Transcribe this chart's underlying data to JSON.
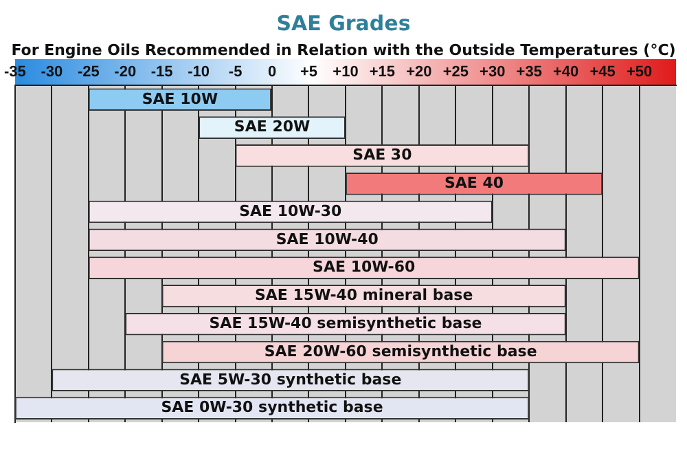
{
  "chart_data": {
    "type": "bar",
    "orientation": "horizontal",
    "title": "SAE Grades",
    "subtitle": "For Engine Oils Recommended in Relation with the Outside Temperatures (°C)",
    "categories": [
      "SAE 10W",
      "SAE 20W",
      "SAE 30",
      "SAE 40",
      "SAE 10W-30",
      "SAE 10W-40",
      "SAE 10W-60",
      "SAE 15W-40 mineral base",
      "SAE 15W-40 semisynthetic base",
      "SAE 20W-60 semisynthetic base",
      "SAE 5W-30 synthetic base",
      "SAE 0W-30 synthetic base"
    ],
    "base": [
      -25,
      -10,
      -5,
      10,
      -25,
      -25,
      -25,
      -15,
      -20,
      -15,
      -30,
      -35
    ],
    "values": [
      25,
      20,
      40,
      35,
      55,
      65,
      75,
      55,
      60,
      65,
      65,
      70
    ],
    "colors": [
      "#8ecbf2",
      "#e2f3fb",
      "#f8dede",
      "#f27a7a",
      "#f2e8ee",
      "#f4dde2",
      "#f6d6da",
      "#f6dde0",
      "#f4e0e6",
      "#f6d4d6",
      "#e6e6f0",
      "#e2e6f2"
    ],
    "xlim": [
      -35,
      55
    ],
    "xticks": [
      {
        "value": -35,
        "label": "-35"
      },
      -30,
      -25,
      -20,
      -15,
      -10,
      -5,
      0,
      {
        "value": 5,
        "label": "+5"
      },
      {
        "value": 10,
        "label": "+10"
      },
      {
        "value": 15,
        "label": "+15"
      },
      {
        "value": 20,
        "label": "+20"
      },
      {
        "value": 25,
        "label": "+25"
      },
      {
        "value": 30,
        "label": "+30"
      },
      {
        "value": 35,
        "label": "+35"
      },
      {
        "value": 40,
        "label": "+40"
      },
      {
        "value": 45,
        "label": "+45"
      },
      {
        "value": 50,
        "label": "+50"
      }
    ],
    "grid": "x",
    "tick_labels": "x",
    "legend": false
  }
}
